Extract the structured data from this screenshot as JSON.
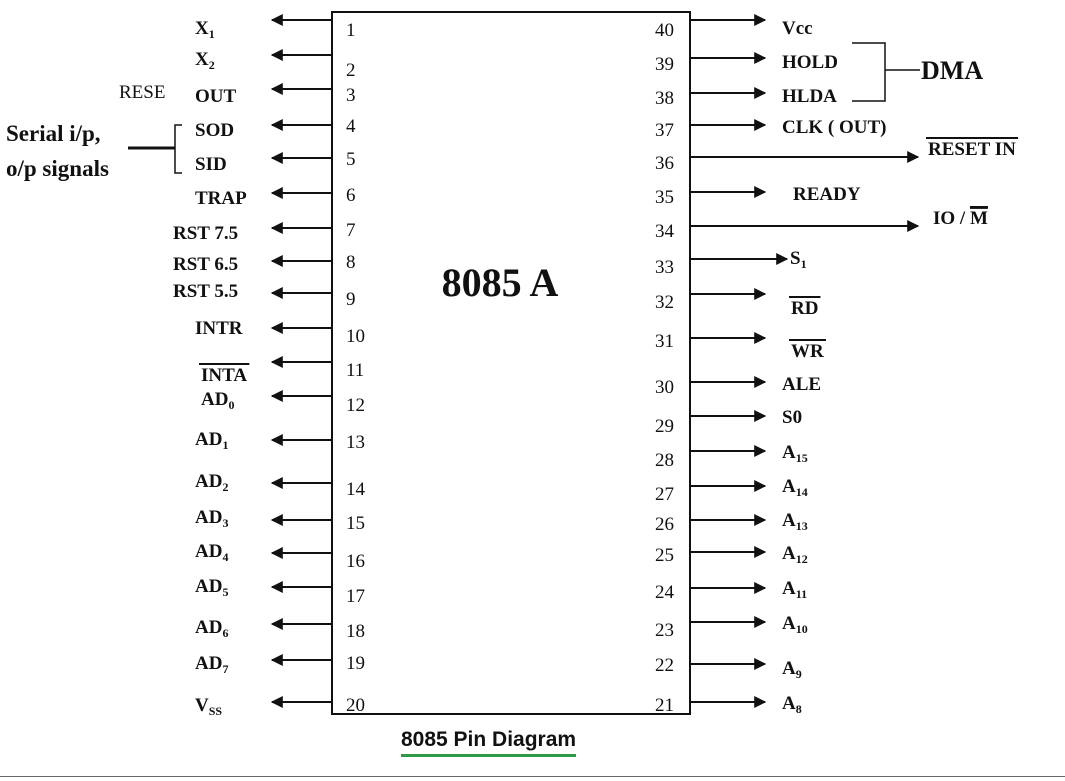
{
  "chip_label": "8085 A",
  "caption": "8085 Pin Diagram",
  "serial_group_label": [
    "Serial i/p,",
    "o/p signals"
  ],
  "dma_label": "DMA",
  "rese_label": "RESE",
  "colors": {
    "line": "#111111",
    "caption_underline": "#2e9a48"
  },
  "left_pins": [
    {
      "num": "1",
      "label": "X",
      "sub": "1"
    },
    {
      "num": "2",
      "label": "X",
      "sub": "2"
    },
    {
      "num": "3",
      "label": "OUT"
    },
    {
      "num": "4",
      "label": "SOD"
    },
    {
      "num": "5",
      "label": "SID"
    },
    {
      "num": "6",
      "label": "TRAP"
    },
    {
      "num": "7",
      "label": "RST 7.5"
    },
    {
      "num": "8",
      "label": "RST 6.5"
    },
    {
      "num": "9",
      "label": "RST 5.5"
    },
    {
      "num": "10",
      "label": "INTR"
    },
    {
      "num": "11",
      "label": "INTA",
      "overline": true
    },
    {
      "num": "12",
      "label": "AD",
      "sub": "0"
    },
    {
      "num": "13",
      "label": "AD",
      "sub": "1"
    },
    {
      "num": "14",
      "label": "AD",
      "sub": "2"
    },
    {
      "num": "15",
      "label": "AD",
      "sub": "3"
    },
    {
      "num": "16",
      "label": "AD",
      "sub": "4"
    },
    {
      "num": "17",
      "label": "AD",
      "sub": "5"
    },
    {
      "num": "18",
      "label": "AD",
      "sub": "6"
    },
    {
      "num": "19",
      "label": "AD",
      "sub": "7"
    },
    {
      "num": "20",
      "label": "V",
      "sub": "SS"
    }
  ],
  "right_pins": [
    {
      "num": "40",
      "label": "Vcc"
    },
    {
      "num": "39",
      "label": "HOLD"
    },
    {
      "num": "38",
      "label": "HLDA"
    },
    {
      "num": "37",
      "label": "CLK ( OUT)"
    },
    {
      "num": "36",
      "label": "RESET IN",
      "overline": true
    },
    {
      "num": "35",
      "label": "READY"
    },
    {
      "num": "34",
      "label": "IO / ",
      "overlined_part": "M"
    },
    {
      "num": "33",
      "label": "S",
      "sub": "1"
    },
    {
      "num": "32",
      "label": "RD",
      "overline": true
    },
    {
      "num": "31",
      "label": "WR",
      "overline": true
    },
    {
      "num": "30",
      "label": "ALE"
    },
    {
      "num": "29",
      "label": "S0"
    },
    {
      "num": "28",
      "label": "A",
      "sub": "15"
    },
    {
      "num": "27",
      "label": "A",
      "sub": "14"
    },
    {
      "num": "26",
      "label": "A",
      "sub": "13"
    },
    {
      "num": "25",
      "label": "A",
      "sub": "12"
    },
    {
      "num": "24",
      "label": "A",
      "sub": "11"
    },
    {
      "num": "23",
      "label": "A",
      "sub": "10"
    },
    {
      "num": "22",
      "label": "A",
      "sub": "9"
    },
    {
      "num": "21",
      "label": "A",
      "sub": "8"
    }
  ]
}
